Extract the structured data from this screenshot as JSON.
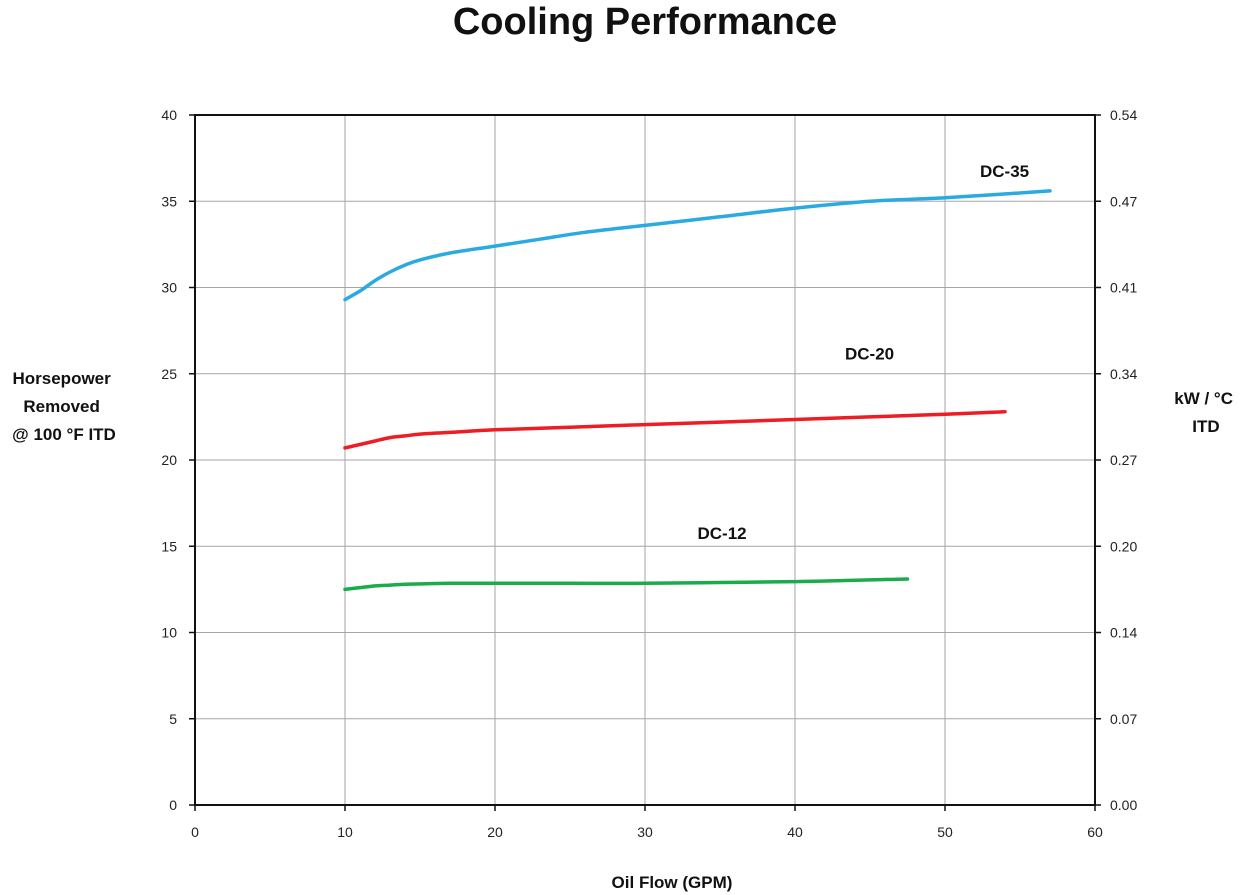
{
  "chart_data": {
    "type": "line",
    "title": "Cooling Performance",
    "xlabel": "Oil Flow (GPM)",
    "ylabel_lines": [
      "Horsepower",
      "Removed",
      "@ 100 °F ITD"
    ],
    "y2label_lines": [
      "kW / °C",
      "ITD"
    ],
    "xlim": [
      0,
      60
    ],
    "ylim": [
      0,
      40
    ],
    "x_ticks": [
      "0",
      "10",
      "20",
      "30",
      "40",
      "50",
      "60"
    ],
    "x_tick_values": [
      0,
      10,
      20,
      30,
      40,
      50,
      60
    ],
    "y_ticks": [
      "0",
      "5",
      "10",
      "15",
      "20",
      "25",
      "30",
      "35",
      "40"
    ],
    "y_tick_values": [
      0,
      5,
      10,
      15,
      20,
      25,
      30,
      35,
      40
    ],
    "y2_ticks": [
      "0.00",
      "0.07",
      "0.14",
      "0.20",
      "0.27",
      "0.34",
      "0.41",
      "0.47",
      "0.54"
    ],
    "grid": true,
    "series": [
      {
        "name": "DC-35",
        "color": "#29abe2",
        "x": [
          10,
          11,
          12,
          13,
          14,
          15,
          17,
          20,
          23,
          26,
          30,
          35,
          40,
          45,
          50,
          57
        ],
        "y": [
          29.3,
          29.8,
          30.4,
          30.9,
          31.3,
          31.6,
          32.0,
          32.4,
          32.8,
          33.2,
          33.6,
          34.1,
          34.6,
          35.0,
          35.2,
          35.6
        ]
      },
      {
        "name": "DC-20",
        "color": "#ee1c25",
        "x": [
          10,
          11,
          12,
          13,
          14,
          15,
          17,
          20,
          25,
          30,
          35,
          40,
          45,
          50,
          54
        ],
        "y": [
          20.7,
          20.9,
          21.1,
          21.3,
          21.4,
          21.5,
          21.6,
          21.75,
          21.9,
          22.05,
          22.2,
          22.35,
          22.5,
          22.65,
          22.8
        ]
      },
      {
        "name": "DC-12",
        "color": "#1aab4b",
        "x": [
          10,
          11,
          12,
          13,
          14,
          15,
          17,
          20,
          25,
          30,
          35,
          40,
          45,
          47.5
        ],
        "y": [
          12.5,
          12.6,
          12.7,
          12.75,
          12.8,
          12.82,
          12.85,
          12.85,
          12.85,
          12.85,
          12.9,
          12.95,
          13.05,
          13.1
        ]
      }
    ]
  }
}
